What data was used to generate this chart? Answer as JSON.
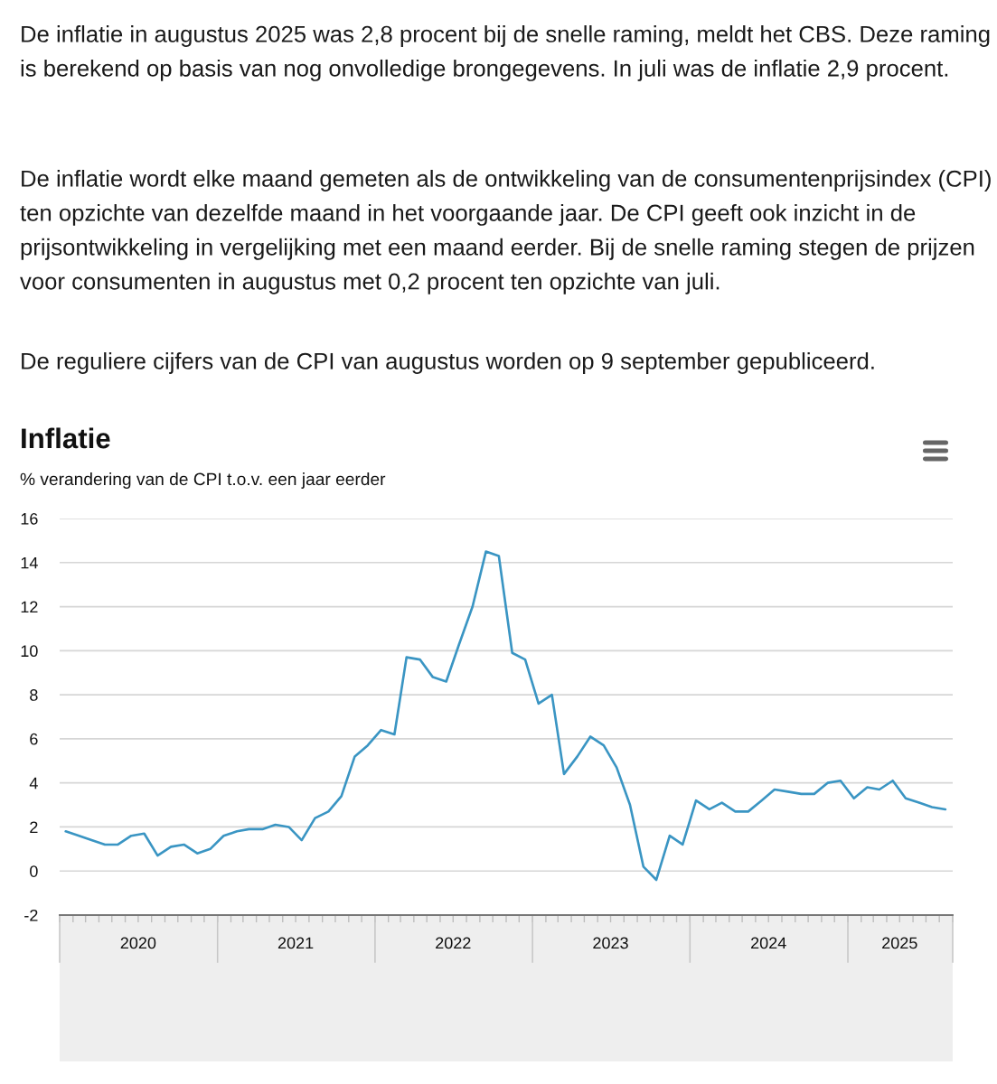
{
  "chart_data": {
    "type": "line",
    "title": "Inflatie",
    "subtitle": "% verandering van de CPI t.o.v. een jaar eerder",
    "annotations": [
      "De inflatie in augustus 2025 was 2,8 procent bij de snelle raming, meldt het CBS. Deze raming is berekend op basis van nog onvolledige brongegevens. In juli was de inflatie 2,9 procent.",
      "De inflatie wordt elke maand gemeten als de ontwikkeling van de consumentenprijsindex (CPI) ten opzichte van dezelfde maand in het voorgaande jaar. De CPI geeft ook inzicht in de prijsontwikkeling in vergelijking met een maand eerder. Bij de snelle raming stegen de prijzen voor consumenten in augustus met 0,2 procent ten opzichte van juli.",
      "De reguliere cijfers van de CPI van augustus worden op 9 september gepubliceerd."
    ],
    "x": [
      "2020-01-15",
      "2020-02-15",
      "2020-03-15",
      "2020-04-15",
      "2020-05-15",
      "2020-06-15",
      "2020-07-15",
      "2020-08-15",
      "2020-09-15",
      "2020-10-15",
      "2020-11-15",
      "2020-12-15",
      "2021-01-15",
      "2021-02-15",
      "2021-03-15",
      "2021-04-15",
      "2021-05-15",
      "2021-06-15",
      "2021-07-15",
      "2021-08-15",
      "2021-09-15",
      "2021-10-15",
      "2021-11-15",
      "2021-12-15",
      "2022-01-15",
      "2022-02-15",
      "2022-03-15",
      "2022-04-15",
      "2022-05-15",
      "2022-06-15",
      "2022-07-15",
      "2022-08-15",
      "2022-09-15",
      "2022-10-15",
      "2022-11-15",
      "2022-12-15",
      "2023-01-15",
      "2023-02-15",
      "2023-03-15",
      "2023-04-15",
      "2023-05-15",
      "2023-06-15",
      "2023-07-15",
      "2023-08-15",
      "2023-09-15",
      "2023-10-15",
      "2023-11-15",
      "2023-12-15",
      "2024-01-15",
      "2024-02-15",
      "2024-03-15",
      "2024-04-15",
      "2024-05-15",
      "2024-06-15",
      "2024-07-15",
      "2024-08-15",
      "2024-09-15",
      "2024-10-15",
      "2024-11-15",
      "2024-12-15",
      "2025-01-15",
      "2025-02-15",
      "2025-03-15",
      "2025-04-15",
      "2025-05-15",
      "2025-06-15",
      "2025-07-15",
      "2025-08-15"
    ],
    "series": [
      {
        "color": "#3a95c3",
        "values": [
          1.8,
          1.6,
          1.4,
          1.2,
          1.2,
          1.6,
          1.7,
          0.7,
          1.1,
          1.2,
          0.8,
          1.0,
          1.6,
          1.8,
          1.9,
          1.9,
          2.1,
          2.0,
          1.4,
          2.4,
          2.7,
          3.4,
          5.2,
          5.7,
          6.4,
          6.2,
          9.7,
          9.6,
          8.8,
          8.6,
          10.3,
          12.0,
          14.5,
          14.3,
          9.9,
          9.6,
          7.6,
          8.0,
          4.4,
          5.2,
          6.1,
          5.7,
          4.7,
          3.0,
          0.2,
          -0.4,
          1.6,
          1.2,
          3.2,
          2.8,
          3.1,
          2.7,
          2.7,
          3.2,
          3.7,
          3.6,
          3.5,
          3.5,
          4.0,
          4.1,
          3.3,
          3.8,
          3.7,
          4.1,
          3.3,
          3.1,
          2.9,
          2.8
        ]
      }
    ],
    "xlim": [
      "2020-01-01",
      "2025-09-01"
    ],
    "xticks": [
      {
        "value": "2020-01-01",
        "label": null
      },
      {
        "value": "2020-02-01",
        "label": null
      },
      {
        "value": "2020-03-01",
        "label": null
      },
      {
        "value": "2020-04-01",
        "label": null
      },
      {
        "value": "2020-05-01",
        "label": null
      },
      {
        "value": "2020-06-01",
        "label": null
      },
      {
        "value": "2020-07-01",
        "label": "2020"
      },
      {
        "value": "2020-08-01",
        "label": null
      },
      {
        "value": "2020-09-01",
        "label": null
      },
      {
        "value": "2020-10-01",
        "label": null
      },
      {
        "value": "2020-11-01",
        "label": null
      },
      {
        "value": "2020-12-01",
        "label": null
      },
      {
        "value": "2021-01-01",
        "label": null
      },
      {
        "value": "2021-02-01",
        "label": null
      },
      {
        "value": "2021-03-01",
        "label": null
      },
      {
        "value": "2021-04-01",
        "label": null
      },
      {
        "value": "2021-05-01",
        "label": null
      },
      {
        "value": "2021-06-01",
        "label": null
      },
      {
        "value": "2021-07-01",
        "label": "2021"
      },
      {
        "value": "2021-08-01",
        "label": null
      },
      {
        "value": "2021-09-01",
        "label": null
      },
      {
        "value": "2021-10-01",
        "label": null
      },
      {
        "value": "2021-11-01",
        "label": null
      },
      {
        "value": "2021-12-01",
        "label": null
      },
      {
        "value": "2022-01-01",
        "label": null
      },
      {
        "value": "2022-02-01",
        "label": null
      },
      {
        "value": "2022-03-01",
        "label": null
      },
      {
        "value": "2022-04-01",
        "label": null
      },
      {
        "value": "2022-05-01",
        "label": null
      },
      {
        "value": "2022-06-01",
        "label": null
      },
      {
        "value": "2022-07-01",
        "label": "2022"
      },
      {
        "value": "2022-08-01",
        "label": null
      },
      {
        "value": "2022-09-01",
        "label": null
      },
      {
        "value": "2022-10-01",
        "label": null
      },
      {
        "value": "2022-11-01",
        "label": null
      },
      {
        "value": "2022-12-01",
        "label": null
      },
      {
        "value": "2023-01-01",
        "label": null
      },
      {
        "value": "2023-02-01",
        "label": null
      },
      {
        "value": "2023-03-01",
        "label": null
      },
      {
        "value": "2023-04-01",
        "label": null
      },
      {
        "value": "2023-05-01",
        "label": null
      },
      {
        "value": "2023-06-01",
        "label": null
      },
      {
        "value": "2023-07-01",
        "label": "2023"
      },
      {
        "value": "2023-08-01",
        "label": null
      },
      {
        "value": "2023-09-01",
        "label": null
      },
      {
        "value": "2023-10-01",
        "label": null
      },
      {
        "value": "2023-11-01",
        "label": null
      },
      {
        "value": "2023-12-01",
        "label": null
      },
      {
        "value": "2024-01-01",
        "label": null
      },
      {
        "value": "2024-02-01",
        "label": null
      },
      {
        "value": "2024-03-01",
        "label": null
      },
      {
        "value": "2024-04-01",
        "label": null
      },
      {
        "value": "2024-05-01",
        "label": null
      },
      {
        "value": "2024-06-01",
        "label": null
      },
      {
        "value": "2024-07-01",
        "label": "2024"
      },
      {
        "value": "2024-08-01",
        "label": null
      },
      {
        "value": "2024-09-01",
        "label": null
      },
      {
        "value": "2024-10-01",
        "label": null
      },
      {
        "value": "2024-11-01",
        "label": null
      },
      {
        "value": "2024-12-01",
        "label": null
      },
      {
        "value": "2025-01-01",
        "label": null
      },
      {
        "value": "2025-02-01",
        "label": null
      },
      {
        "value": "2025-03-01",
        "label": null
      },
      {
        "value": "2025-04-01",
        "label": null
      },
      {
        "value": "2025-05-01",
        "label": "2025"
      },
      {
        "value": "2025-06-01",
        "label": null
      },
      {
        "value": "2025-07-01",
        "label": null
      },
      {
        "value": "2025-08-01",
        "label": null
      },
      {
        "value": "2025-09-01",
        "label": null
      }
    ],
    "ylim": [
      -2,
      16
    ],
    "yticks": [
      -2,
      0,
      2,
      4,
      6,
      8,
      10,
      12,
      14,
      16
    ],
    "grid": "y",
    "marker": "none",
    "line_style": "solid"
  }
}
